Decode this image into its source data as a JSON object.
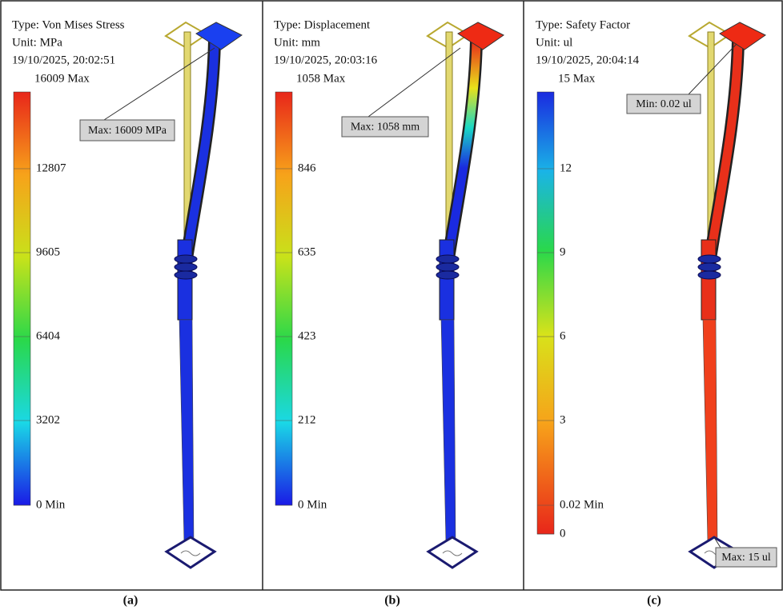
{
  "panels": [
    {
      "type_text": "Type: Von Mises Stress",
      "unit_text": "Unit: MPa",
      "date": "19/10/2025, 20:02:51",
      "max_label": "16009 Max",
      "ticks": [
        "12807",
        "9605",
        "6404",
        "3202",
        "0 Min"
      ],
      "callouts": [
        "Max: 16009 MPa"
      ],
      "caption": "(a)"
    },
    {
      "type_text": "Type: Displacement",
      "unit_text": "Unit: mm",
      "date": "19/10/2025, 20:03:16",
      "max_label": "1058 Max",
      "ticks": [
        "846",
        "635",
        "423",
        "212",
        "0 Min"
      ],
      "callouts": [
        "Max: 1058 mm"
      ],
      "caption": "(b)"
    },
    {
      "type_text": "Type: Safety Factor",
      "unit_text": "Unit: ul",
      "date": "19/10/2025, 20:04:14",
      "max_label": "15 Max",
      "ticks": [
        "12",
        "9",
        "6",
        "3",
        "0.02 Min",
        "0"
      ],
      "callouts": [
        "Min: 0.02 ul",
        "Max: 15 ul"
      ],
      "caption": "(c)"
    }
  ]
}
